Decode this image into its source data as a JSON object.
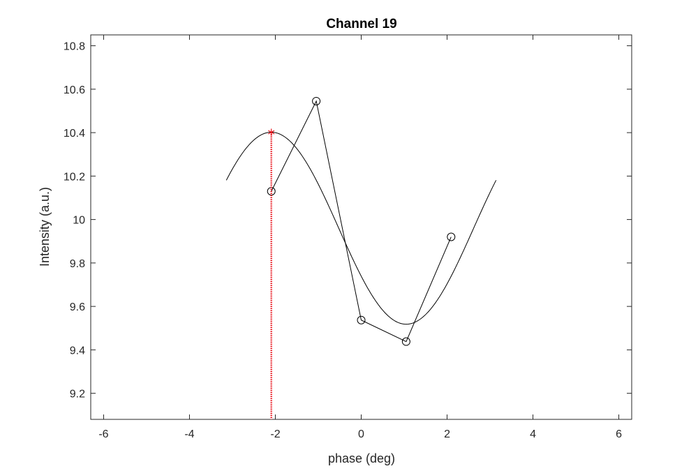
{
  "chart_data": {
    "type": "line",
    "title": "Channel 19",
    "xlabel": "phase (deg)",
    "ylabel": "Intensity (a.u.)",
    "xlim": [
      -6.3,
      6.3
    ],
    "ylim": [
      9.08,
      10.85
    ],
    "xticks": [
      -6,
      -4,
      -2,
      0,
      2,
      4,
      6
    ],
    "yticks": [
      9.2,
      9.4,
      9.6,
      9.8,
      10,
      10.2,
      10.4,
      10.6,
      10.8
    ],
    "xtick_labels": [
      "-6",
      "-4",
      "-2",
      "0",
      "2",
      "4",
      "6"
    ],
    "ytick_labels": [
      "9.2",
      "9.4",
      "9.6",
      "9.8",
      "10",
      "10.2",
      "10.4",
      "10.6",
      "10.8"
    ],
    "grid": false,
    "box": true,
    "series": [
      {
        "kind": "measured",
        "marker": "circle",
        "color": "#000000",
        "x": [
          -2.094,
          -1.047,
          0,
          1.047,
          2.094
        ],
        "y": [
          10.13,
          10.545,
          9.537,
          9.438,
          9.92
        ]
      },
      {
        "kind": "fit",
        "marker": "none",
        "color": "#000000",
        "model": {
          "offset": 9.96,
          "amplitude": 0.442,
          "peak_phase": -2.094,
          "x_range": [
            -3.1416,
            3.1416
          ]
        }
      }
    ],
    "annotations": [
      {
        "kind": "peak-marker",
        "marker": "asterisk",
        "color": "#e8131c",
        "x": -2.094,
        "y": 10.402
      },
      {
        "kind": "vertical-dotted-line",
        "color": "#e8131c",
        "x": -2.094
      }
    ],
    "colors": {
      "axes": "#262626",
      "data": "#000000",
      "peak": "#e8131c"
    }
  }
}
